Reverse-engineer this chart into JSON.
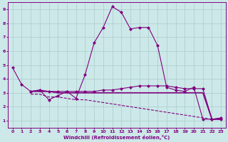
{
  "xlabel": "Windchill (Refroidissement éolien,°C)",
  "ylabel": "",
  "xlim": [
    -0.5,
    23.5
  ],
  "ylim": [
    0.5,
    9.5
  ],
  "xticks": [
    0,
    1,
    2,
    3,
    4,
    5,
    6,
    7,
    8,
    9,
    10,
    11,
    12,
    13,
    14,
    15,
    16,
    17,
    18,
    19,
    20,
    21,
    22,
    23
  ],
  "yticks": [
    1,
    2,
    3,
    4,
    5,
    6,
    7,
    8,
    9
  ],
  "background_color": "#cce8e8",
  "line_color": "#800080",
  "grid_color": "#aacccc",
  "line1_x": [
    0,
    1,
    2,
    3,
    4,
    5,
    6,
    7,
    8,
    9,
    10,
    11,
    12,
    13,
    14,
    15,
    16,
    17,
    18,
    19,
    20,
    21,
    22,
    23
  ],
  "line1_y": [
    4.8,
    3.6,
    3.1,
    3.2,
    2.5,
    2.8,
    3.1,
    2.6,
    4.3,
    6.6,
    7.7,
    9.2,
    8.8,
    7.6,
    7.7,
    7.7,
    6.4,
    3.4,
    3.2,
    3.1,
    3.4,
    1.1,
    1.1,
    1.2
  ],
  "line2_x": [
    2,
    3,
    4,
    5,
    6,
    7,
    8,
    9,
    10,
    11,
    12,
    13,
    14,
    15,
    16,
    17,
    18,
    19,
    20,
    21,
    22,
    23
  ],
  "line2_y": [
    3.1,
    3.2,
    3.1,
    3.1,
    3.1,
    3.1,
    3.1,
    3.1,
    3.2,
    3.2,
    3.3,
    3.4,
    3.5,
    3.5,
    3.5,
    3.5,
    3.4,
    3.3,
    3.3,
    3.3,
    1.1,
    1.1
  ],
  "line3_x": [
    2,
    3,
    4,
    5,
    6,
    7,
    8,
    9,
    10,
    11,
    12,
    13,
    14,
    15,
    16,
    17,
    18,
    19,
    20,
    21,
    22,
    23
  ],
  "line3_y": [
    3.1,
    3.1,
    3.1,
    3.0,
    3.0,
    3.0,
    3.0,
    3.0,
    3.0,
    3.0,
    3.0,
    3.0,
    3.0,
    3.0,
    3.0,
    3.0,
    3.0,
    3.0,
    3.0,
    3.0,
    1.1,
    1.1
  ],
  "line4_x": [
    2,
    3,
    4,
    5,
    6,
    7,
    8,
    9,
    10,
    11,
    12,
    13,
    14,
    15,
    16,
    17,
    18,
    19,
    20,
    21,
    22,
    23
  ],
  "line4_y": [
    2.9,
    2.9,
    2.7,
    2.7,
    2.6,
    2.5,
    2.5,
    2.4,
    2.3,
    2.2,
    2.1,
    2.0,
    1.9,
    1.8,
    1.7,
    1.6,
    1.5,
    1.4,
    1.3,
    1.2,
    1.1,
    1.1
  ]
}
